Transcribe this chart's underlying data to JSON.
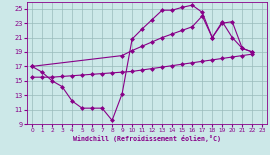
{
  "bg_color": "#cce8e8",
  "line_color": "#880088",
  "grid_color": "#99bbbb",
  "xlabel": "Windchill (Refroidissement éolien,°C)",
  "xlim": [
    -0.5,
    23.5
  ],
  "ylim": [
    9,
    26
  ],
  "yticks": [
    9,
    11,
    13,
    15,
    17,
    19,
    21,
    23,
    25
  ],
  "xticks": [
    0,
    1,
    2,
    3,
    4,
    5,
    6,
    7,
    8,
    9,
    10,
    11,
    12,
    13,
    14,
    15,
    16,
    17,
    18,
    19,
    20,
    21,
    22,
    23
  ],
  "curve1_x": [
    0,
    1,
    2,
    3,
    4,
    5,
    6,
    7,
    8,
    9,
    10,
    11,
    12,
    13,
    14,
    15,
    16,
    17,
    18,
    19,
    20,
    21,
    22
  ],
  "curve1_y": [
    17.0,
    16.2,
    15.0,
    14.2,
    12.2,
    11.2,
    11.2,
    11.2,
    9.5,
    13.2,
    20.8,
    22.2,
    23.5,
    24.8,
    24.8,
    25.2,
    25.5,
    24.5,
    21.0,
    23.2,
    21.0,
    19.5,
    19.0
  ],
  "curve2_x": [
    0,
    9,
    10,
    11,
    12,
    13,
    14,
    15,
    16,
    17,
    18,
    19,
    20,
    21,
    22
  ],
  "curve2_y": [
    17.0,
    18.5,
    19.2,
    19.8,
    20.4,
    21.0,
    21.5,
    22.0,
    22.5,
    24.0,
    21.0,
    23.0,
    23.2,
    19.5,
    19.0
  ],
  "curve3_x": [
    0,
    1,
    2,
    3,
    4,
    5,
    6,
    7,
    8,
    9,
    10,
    11,
    12,
    13,
    14,
    15,
    16,
    17,
    18,
    19,
    20,
    21,
    22
  ],
  "curve3_y": [
    15.5,
    15.5,
    15.5,
    15.6,
    15.7,
    15.8,
    15.9,
    16.0,
    16.1,
    16.2,
    16.3,
    16.5,
    16.7,
    16.9,
    17.1,
    17.3,
    17.5,
    17.7,
    17.9,
    18.1,
    18.3,
    18.5,
    18.7
  ],
  "marker": "D",
  "markersize": 2.5,
  "linewidth": 0.8
}
